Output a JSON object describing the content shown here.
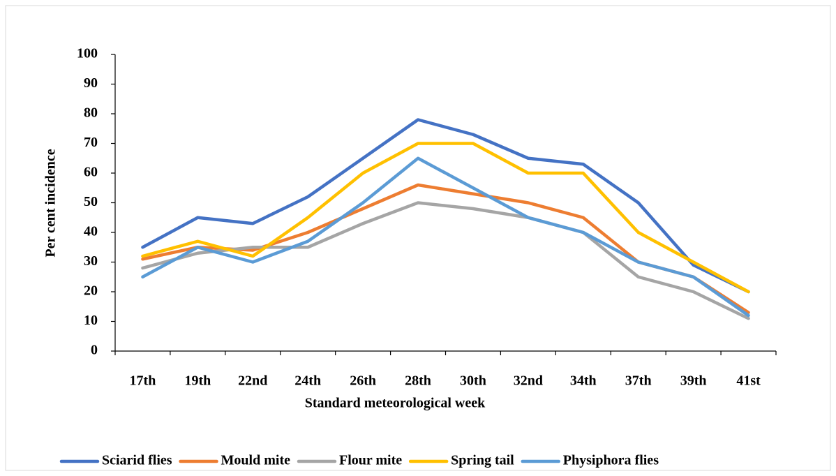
{
  "chart_data": {
    "type": "line",
    "x_label": "Standard meteorological week",
    "y_label": "Per cent incidence",
    "categories": [
      "17th",
      "19th",
      "22nd",
      "24th",
      "26th",
      "28th",
      "30th",
      "32nd",
      "34th",
      "37th",
      "39th",
      "41st"
    ],
    "series": [
      {
        "name": "Sciarid flies",
        "color": "#4472c4",
        "values": [
          35,
          45,
          43,
          52,
          65,
          78,
          73,
          65,
          63,
          50,
          29,
          20
        ]
      },
      {
        "name": "Mould mite",
        "color": "#ed7d31",
        "values": [
          31,
          35,
          34,
          40,
          48,
          56,
          53,
          50,
          45,
          30,
          25,
          13
        ]
      },
      {
        "name": "Flour mite",
        "color": "#a5a5a5",
        "values": [
          28,
          33,
          35,
          35,
          43,
          50,
          48,
          45,
          40,
          25,
          20,
          11
        ]
      },
      {
        "name": "Spring tail",
        "color": "#ffc000",
        "values": [
          32,
          37,
          32,
          45,
          60,
          70,
          70,
          60,
          60,
          40,
          30,
          20
        ]
      },
      {
        "name": "Physiphora flies",
        "color": "#5b9bd5",
        "values": [
          25,
          35,
          30,
          37,
          50,
          65,
          55,
          45,
          40,
          30,
          25,
          12
        ]
      }
    ],
    "ylim": [
      0,
      100
    ],
    "yticks": [
      0,
      10,
      20,
      30,
      40,
      50,
      60,
      70,
      80,
      90,
      100
    ],
    "grid": false,
    "legend": "bottom"
  }
}
